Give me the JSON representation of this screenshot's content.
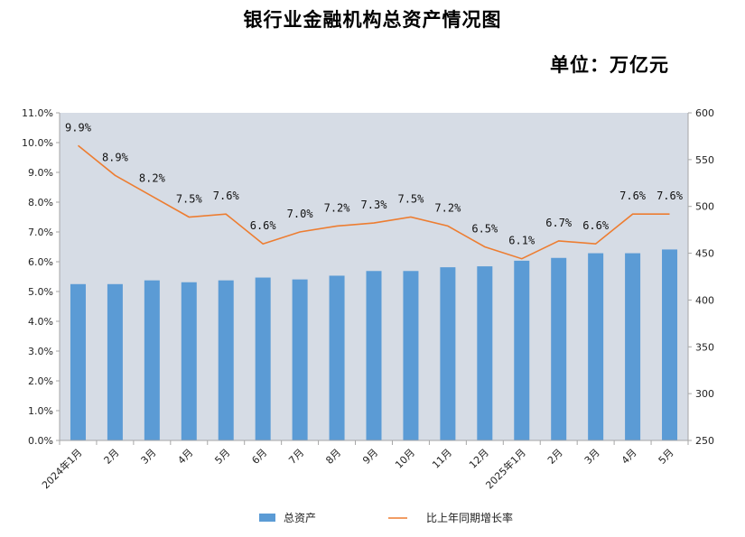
{
  "header": {
    "title": "银行业金融机构总资产情况图",
    "unit": "单位：万亿元"
  },
  "colors": {
    "bar": "#5b9bd5",
    "line": "#ed7d31",
    "plot_bg": "#d6dce5",
    "axis": "#a6a6a6"
  },
  "chart_data": {
    "type": "bar+line",
    "categories": [
      "2024年1月",
      "2月",
      "3月",
      "4月",
      "5月",
      "6月",
      "7月",
      "8月",
      "9月",
      "10月",
      "11月",
      "12月",
      "2025年1月",
      "2月",
      "3月",
      "4月",
      "5月"
    ],
    "series": [
      {
        "name": "总资产",
        "type": "bar",
        "axis": "right",
        "values": [
          417,
          417,
          421,
          419,
          421,
          424,
          422,
          426,
          431,
          431,
          435,
          436,
          442,
          445,
          450,
          450,
          454
        ]
      },
      {
        "name": "比上年同期增长率",
        "type": "line",
        "axis": "left",
        "values": [
          9.9,
          8.9,
          8.2,
          7.5,
          7.6,
          6.6,
          7.0,
          7.2,
          7.3,
          7.5,
          7.2,
          6.5,
          6.1,
          6.7,
          6.6,
          7.6,
          7.6
        ],
        "labels": [
          "9.9%",
          "8.9%",
          "8.2%",
          "7.5%",
          "7.6%",
          "6.6%",
          "7.0%",
          "7.2%",
          "7.3%",
          "7.5%",
          "7.2%",
          "6.5%",
          "6.1%",
          "6.7%",
          "6.6%",
          "7.6%",
          "7.6%"
        ]
      }
    ],
    "y_left": {
      "min": 0,
      "max": 11,
      "step": 1,
      "ticks": [
        "0.0%",
        "1.0%",
        "2.0%",
        "3.0%",
        "4.0%",
        "5.0%",
        "6.0%",
        "7.0%",
        "8.0%",
        "9.0%",
        "10.0%",
        "11.0%"
      ]
    },
    "y_right": {
      "min": 250,
      "max": 600,
      "step": 50,
      "ticks": [
        "250",
        "300",
        "350",
        "400",
        "450",
        "500",
        "550",
        "600"
      ]
    },
    "legend_position": "bottom",
    "grid": false
  }
}
